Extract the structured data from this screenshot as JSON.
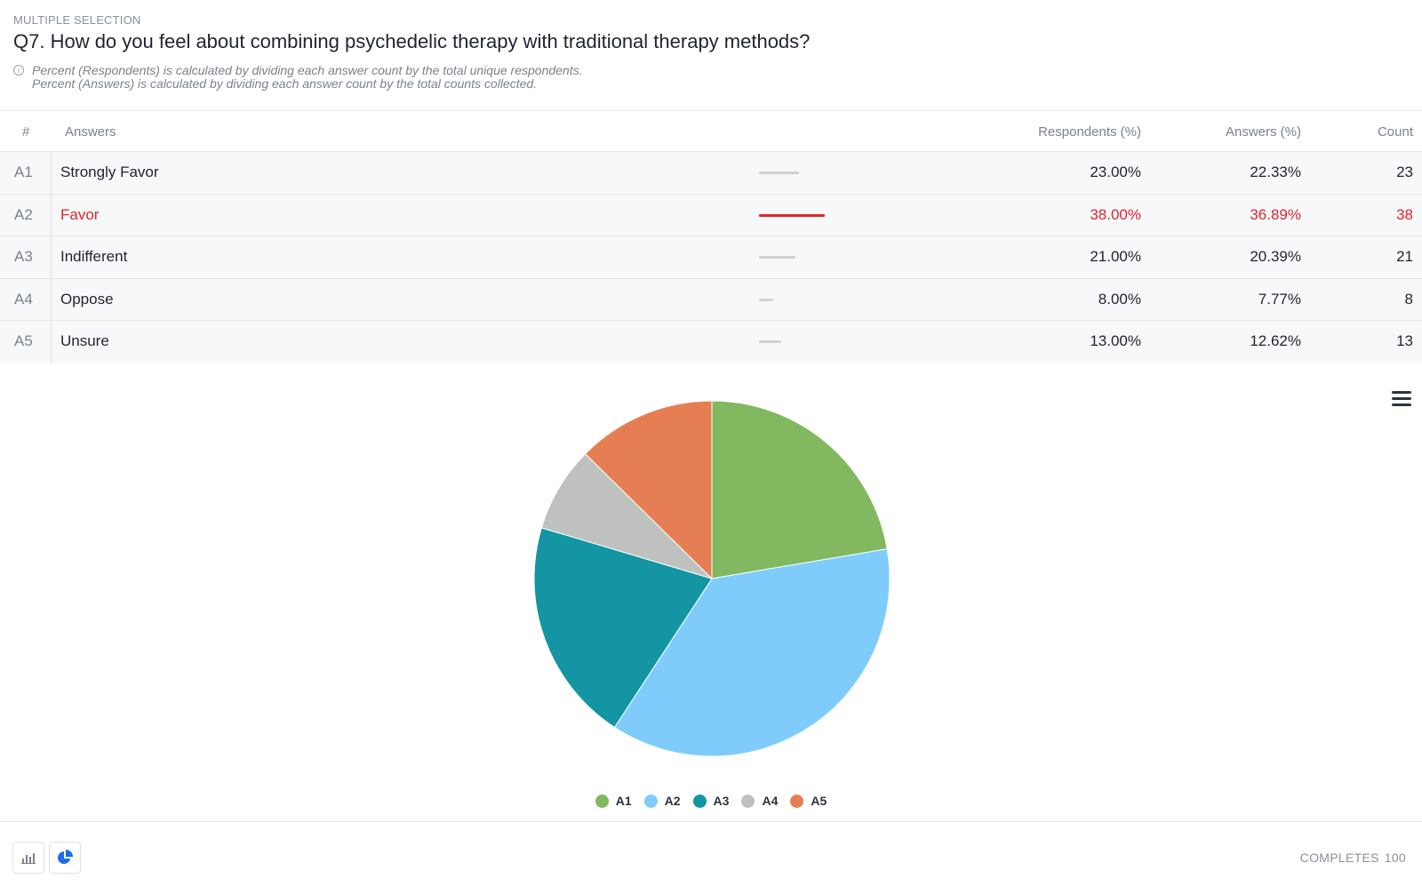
{
  "question": {
    "type_label": "MULTIPLE SELECTION",
    "title": "Q7. How do you feel about combining psychedelic therapy with traditional therapy methods?",
    "note_line1": "Percent (Respondents) is calculated by dividing each answer count by the total unique respondents.",
    "note_line2": "Percent (Answers) is calculated by dividing each answer count by the total counts collected."
  },
  "table": {
    "headers": {
      "num": "#",
      "answers": "Answers",
      "respondents": "Respondents (%)",
      "answers_pct": "Answers (%)",
      "count": "Count"
    },
    "rows": [
      {
        "code": "A1",
        "label": "Strongly Favor",
        "respondents": "23.00%",
        "answers": "22.33%",
        "count": "23",
        "share": 0.2233,
        "highlight": false
      },
      {
        "code": "A2",
        "label": "Favor",
        "respondents": "38.00%",
        "answers": "36.89%",
        "count": "38",
        "share": 0.3689,
        "highlight": true
      },
      {
        "code": "A3",
        "label": "Indifferent",
        "respondents": "21.00%",
        "answers": "20.39%",
        "count": "21",
        "share": 0.2039,
        "highlight": false
      },
      {
        "code": "A4",
        "label": "Oppose",
        "respondents": "8.00%",
        "answers": "7.77%",
        "count": "8",
        "share": 0.0777,
        "highlight": false
      },
      {
        "code": "A5",
        "label": "Unsure",
        "respondents": "13.00%",
        "answers": "12.62%",
        "count": "13",
        "share": 0.1262,
        "highlight": false
      }
    ],
    "highlight_color": "#e0262b"
  },
  "chart_data": {
    "type": "pie",
    "categories": [
      "A1",
      "A2",
      "A3",
      "A4",
      "A5"
    ],
    "values": [
      23,
      38,
      21,
      8,
      13
    ],
    "colors": [
      "#82b960",
      "#7fccfc",
      "#1395a3",
      "#bfc1bf",
      "#e57f53"
    ],
    "legend_position": "bottom"
  },
  "footer": {
    "completes_label": "COMPLETES",
    "completes_value": "100",
    "bar_chart_icon": "bar-chart-icon",
    "pie_chart_icon": "pie-chart-icon"
  },
  "chart_menu_icon": "hamburger-menu-icon"
}
